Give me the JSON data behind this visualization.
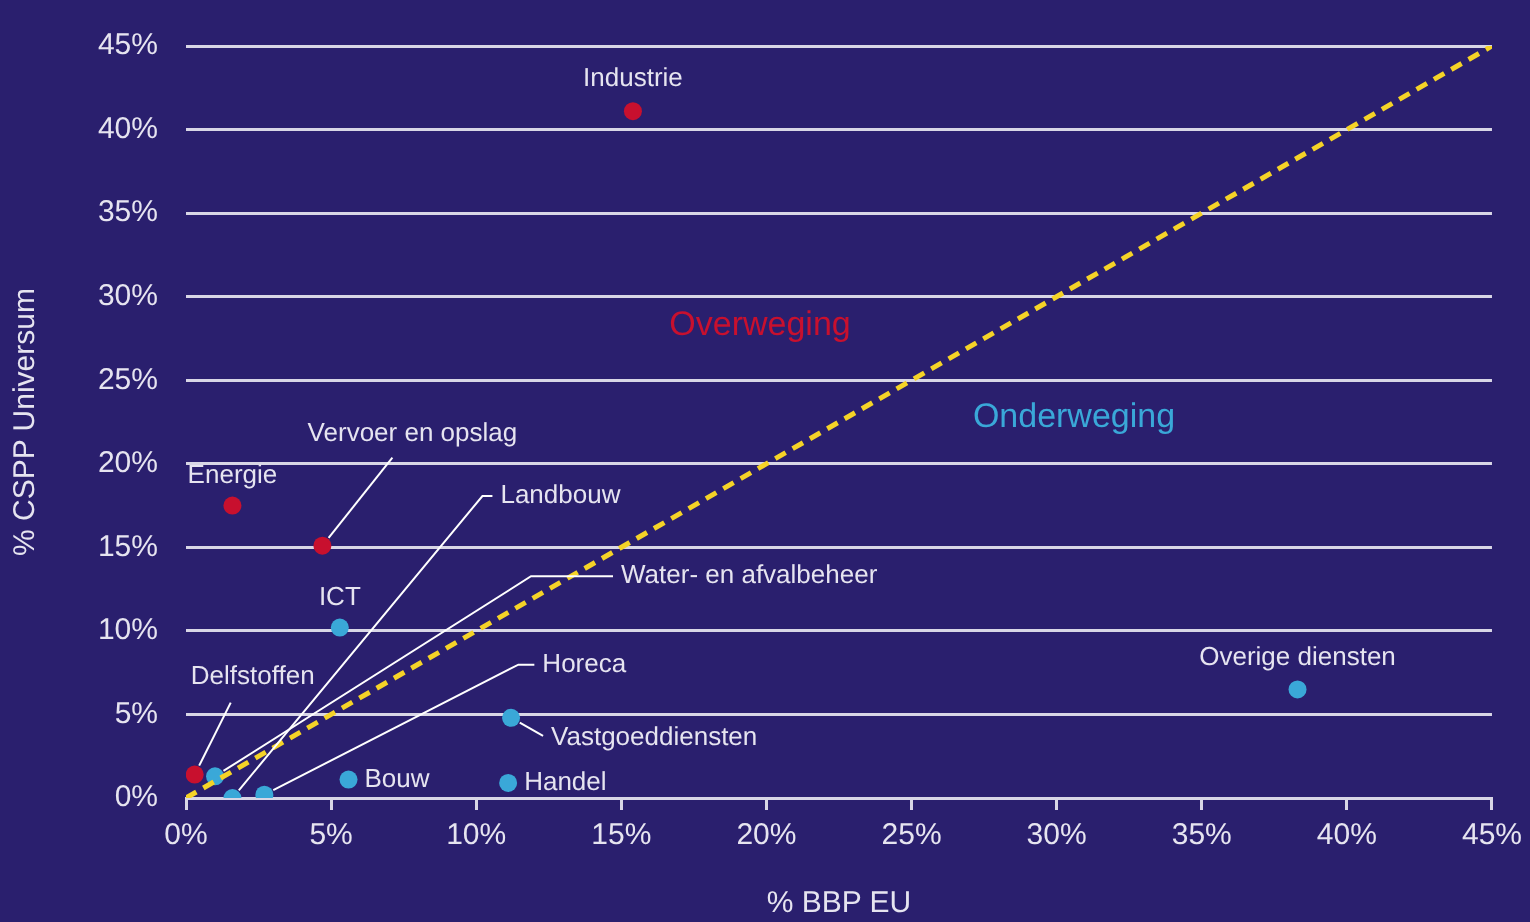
{
  "chart_data": {
    "type": "scatter",
    "xlabel": "% BBP EU",
    "ylabel": "% CSPP Universum",
    "xlim": [
      0,
      45
    ],
    "ylim": [
      0,
      45
    ],
    "xticks": [
      {
        "value": 0,
        "label": "0%"
      },
      {
        "value": 5,
        "label": "5%"
      },
      {
        "value": 10,
        "label": "10%"
      },
      {
        "value": 15,
        "label": "15%"
      },
      {
        "value": 20,
        "label": "20%"
      },
      {
        "value": 25,
        "label": "25%"
      },
      {
        "value": 30,
        "label": "30%"
      },
      {
        "value": 35,
        "label": "35%"
      },
      {
        "value": 40,
        "label": "40%"
      },
      {
        "value": 45,
        "label": "45%"
      }
    ],
    "yticks": [
      {
        "value": 0,
        "label": "0%"
      },
      {
        "value": 5,
        "label": "5%"
      },
      {
        "value": 10,
        "label": "10%"
      },
      {
        "value": 15,
        "label": "15%"
      },
      {
        "value": 20,
        "label": "20%"
      },
      {
        "value": 25,
        "label": "25%"
      },
      {
        "value": 30,
        "label": "30%"
      },
      {
        "value": 35,
        "label": "35%"
      },
      {
        "value": 40,
        "label": "40%"
      },
      {
        "value": 45,
        "label": "45%"
      }
    ],
    "grid": "y",
    "legend": false,
    "marker": "circle",
    "series": [
      {
        "x": [
          15.4,
          1.6,
          4.7,
          5.3,
          0.3,
          1.0,
          1.6,
          2.7,
          5.6,
          11.1,
          11.2,
          38.3
        ],
        "values": [
          41.1,
          17.5,
          15.1,
          10.2,
          1.4,
          1.3,
          0,
          0.2,
          1.1,
          0.9,
          4.8,
          6.5
        ],
        "colors": [
          "#c8102e",
          "#c8102e",
          "#c8102e",
          "#3aa8d8",
          "#c8102e",
          "#3aa8d8",
          "#3aa8d8",
          "#3aa8d8",
          "#3aa8d8",
          "#3aa8d8",
          "#3aa8d8",
          "#3aa8d8"
        ]
      },
      {
        "type": "line",
        "x": [
          0,
          45
        ],
        "values": [
          0,
          45
        ],
        "color": "#f5d327",
        "line_style": "dashed",
        "marker": "none"
      }
    ],
    "annotations": [
      {
        "text": "Industrie",
        "x": 15.4,
        "y": 41.1
      },
      {
        "text": "Energie",
        "x": 1.6,
        "y": 17.5
      },
      {
        "text": "Vervoer en opslag",
        "x": 4.7,
        "y": 15.1
      },
      {
        "text": "ICT",
        "x": 5.3,
        "y": 10.2
      },
      {
        "text": "Delfstoffen",
        "x": 0.3,
        "y": 1.4
      },
      {
        "text": "Water- en afvalbeheer",
        "x": 1.0,
        "y": 1.3
      },
      {
        "text": "Landbouw",
        "x": 1.6,
        "y": 0
      },
      {
        "text": "Horeca",
        "x": 2.7,
        "y": 0.2
      },
      {
        "text": "Bouw",
        "x": 5.6,
        "y": 1.1
      },
      {
        "text": "Handel",
        "x": 11.1,
        "y": 0.9
      },
      {
        "text": "Vastgoeddiensten",
        "x": 11.2,
        "y": 4.8
      },
      {
        "text": "Overige diensten",
        "x": 38.3,
        "y": 6.5
      },
      "Overweging",
      "Onderweging"
    ]
  }
}
